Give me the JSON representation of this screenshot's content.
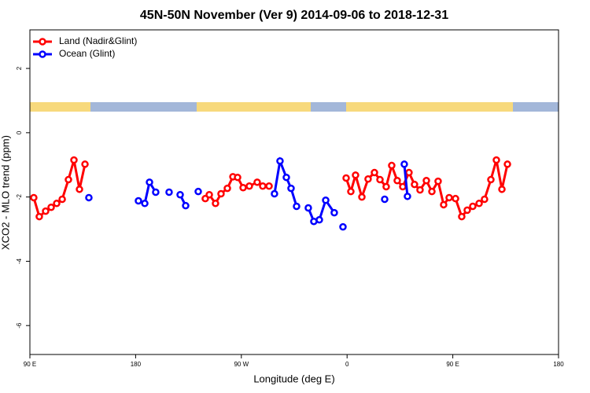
{
  "chart_data": {
    "type": "line",
    "title": "45N-50N November (Ver 9)   2014-09-06 to 2018-12-31",
    "x_label": "Longitude (deg E)",
    "y_label": "XCO2 - MLO trend (ppm)",
    "xlim": [
      90,
      540
    ],
    "xticks": [
      {
        "value": 90,
        "label": "90 E"
      },
      180,
      {
        "value": 270,
        "label": "90 W"
      },
      {
        "value": 360,
        "label": "0"
      },
      {
        "value": 450,
        "label": "90 E"
      },
      {
        "value": 540,
        "label": "180"
      }
    ],
    "ylim": [
      -6.9,
      3.2
    ],
    "yticks": [
      -6,
      -4,
      -2,
      0,
      2
    ],
    "legend": "top-left",
    "series": [
      {
        "name": "Land (Nadir&Glint)",
        "color": "#ff0000",
        "x": [
          93.3,
          98.0,
          103.4,
          108.1,
          112.8,
          117.5,
          122.8,
          127.5,
          132.2,
          136.9,
          null,
          239.3,
          242.7,
          248.0,
          252.7,
          258.1,
          262.8,
          266.8,
          271.5,
          276.8,
          283.5,
          288.2,
          293.6,
          null,
          359.2,
          363.2,
          367.2,
          372.6,
          377.9,
          383.3,
          388.0,
          393.3,
          398.0,
          402.7,
          407.4,
          412.7,
          417.4,
          422.1,
          427.5,
          432.2,
          437.5,
          442.2,
          446.9,
          452.3,
          457.6,
          462.3,
          467.0,
          472.4,
          477.0,
          482.4,
          487.1,
          491.8,
          496.5
        ],
        "values": [
          -2.02,
          -2.61,
          -2.44,
          -2.32,
          -2.2,
          -2.07,
          -1.46,
          -0.85,
          -1.76,
          -0.98,
          null,
          -2.05,
          -1.93,
          -2.2,
          -1.9,
          -1.73,
          -1.37,
          -1.39,
          -1.71,
          -1.66,
          -1.54,
          -1.66,
          -1.66,
          null,
          -1.41,
          -1.83,
          -1.32,
          -2.0,
          -1.44,
          -1.24,
          -1.46,
          -1.68,
          -1.02,
          -1.49,
          -1.68,
          -1.24,
          -1.61,
          -1.78,
          -1.49,
          -1.83,
          -1.51,
          -2.24,
          -2.02,
          -2.05,
          -2.61,
          -2.41,
          -2.29,
          -2.2,
          -2.07,
          -1.46,
          -0.85,
          -1.76,
          -0.98
        ]
      },
      {
        "name": "Ocean (Glint)",
        "color": "#0000ff",
        "x": [
          140.2,
          null,
          182.4,
          187.8,
          191.8,
          197.1,
          null,
          208.5,
          null,
          217.9,
          222.6,
          null,
          233.3,
          null,
          298.2,
          302.9,
          308.3,
          312.3,
          317.0,
          null,
          327.0,
          331.7,
          336.4,
          341.8,
          349.1,
          null,
          356.5,
          null,
          392.0,
          null,
          408.7,
          411.4
        ],
        "values": [
          -2.02,
          null,
          -2.12,
          -2.2,
          -1.54,
          -1.85,
          null,
          -1.85,
          null,
          -1.93,
          -2.27,
          null,
          -1.83,
          null,
          -1.9,
          -0.88,
          -1.39,
          -1.73,
          -2.29,
          null,
          -2.34,
          -2.76,
          -2.71,
          -2.1,
          -2.49,
          null,
          -2.93,
          null,
          -2.07,
          null,
          -0.98,
          -1.98
        ]
      }
    ]
  }
}
